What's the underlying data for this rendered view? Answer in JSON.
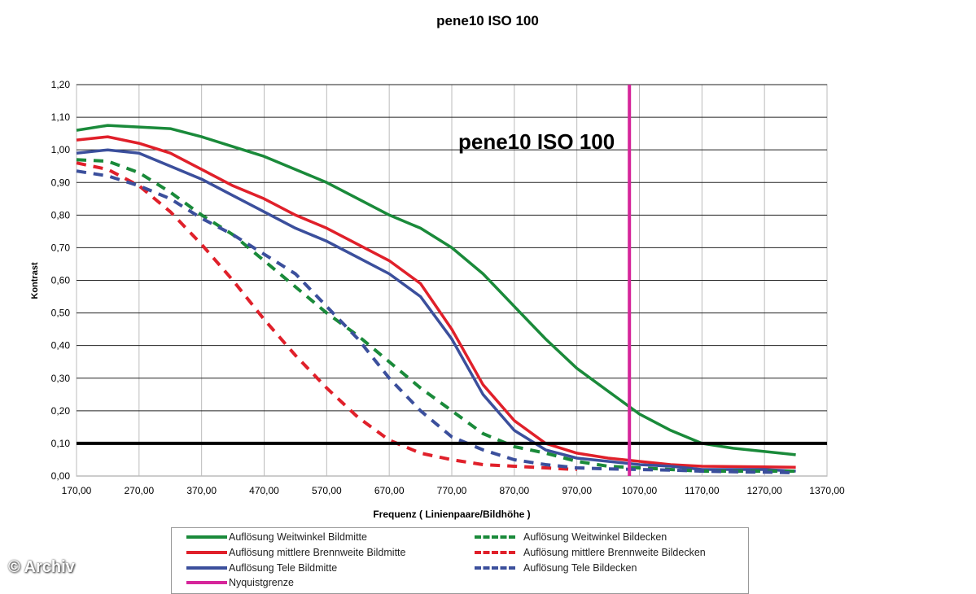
{
  "chart_data": {
    "type": "line",
    "title": "pene10   ISO 100",
    "inner_title": "pene10   ISO 100",
    "xlabel": "Frequenz ( Linienpaare/Bildhöhe )",
    "ylabel": "Kontrast",
    "xlim": [
      170,
      1370
    ],
    "ylim": [
      0,
      1.2
    ],
    "xticks": [
      "170,00",
      "270,00",
      "370,00",
      "470,00",
      "570,00",
      "670,00",
      "770,00",
      "870,00",
      "970,00",
      "1070,00",
      "1170,00",
      "1270,00",
      "1370,00"
    ],
    "yticks": [
      "0,00",
      "0,10",
      "0,20",
      "0,30",
      "0,40",
      "0,50",
      "0,60",
      "0,70",
      "0,80",
      "0,90",
      "1,00",
      "1,10",
      "1,20"
    ],
    "grid": true,
    "legend_position": "bottom",
    "x": [
      170,
      220,
      270,
      320,
      370,
      420,
      470,
      520,
      570,
      620,
      670,
      720,
      770,
      820,
      870,
      920,
      970,
      1020,
      1070,
      1120,
      1170,
      1220,
      1270,
      1320
    ],
    "series": [
      {
        "name": "Auflösung Weitwinkel Bildmitte",
        "color": "#1a8a3a",
        "dashed": false,
        "values": [
          1.06,
          1.075,
          1.07,
          1.065,
          1.04,
          1.01,
          0.98,
          0.94,
          0.9,
          0.85,
          0.8,
          0.76,
          0.7,
          0.62,
          0.52,
          0.42,
          0.33,
          0.26,
          0.19,
          0.14,
          0.1,
          0.085,
          0.075,
          0.065
        ]
      },
      {
        "name": "Auflösung mittlere Brennweite Bildmitte",
        "color": "#e0202a",
        "dashed": false,
        "values": [
          1.03,
          1.04,
          1.02,
          0.99,
          0.94,
          0.89,
          0.85,
          0.8,
          0.76,
          0.71,
          0.66,
          0.59,
          0.45,
          0.28,
          0.17,
          0.1,
          0.07,
          0.055,
          0.045,
          0.035,
          0.03,
          0.029,
          0.028,
          0.027
        ]
      },
      {
        "name": "Auflösung Tele Bildmitte",
        "color": "#3b4f9c",
        "dashed": false,
        "values": [
          0.99,
          1.0,
          0.99,
          0.95,
          0.91,
          0.86,
          0.81,
          0.76,
          0.72,
          0.67,
          0.62,
          0.55,
          0.42,
          0.25,
          0.14,
          0.08,
          0.055,
          0.045,
          0.035,
          0.03,
          0.02,
          0.02,
          0.02,
          0.015
        ]
      },
      {
        "name": "Auflösung Weitwinkel Bildecken",
        "color": "#1a8a3a",
        "dashed": true,
        "values": [
          0.97,
          0.965,
          0.93,
          0.87,
          0.8,
          0.74,
          0.66,
          0.58,
          0.5,
          0.43,
          0.35,
          0.27,
          0.2,
          0.13,
          0.09,
          0.07,
          0.045,
          0.03,
          0.025,
          0.02,
          0.015,
          0.015,
          0.015,
          0.015
        ]
      },
      {
        "name": "Auflösung mittlere Brennweite Bildecken",
        "color": "#e0202a",
        "dashed": true,
        "values": [
          0.96,
          0.94,
          0.89,
          0.81,
          0.71,
          0.6,
          0.48,
          0.37,
          0.27,
          0.18,
          0.11,
          0.07,
          0.05,
          0.035,
          0.03,
          0.025,
          0.02,
          null,
          null,
          null,
          null,
          null,
          null,
          null
        ]
      },
      {
        "name": "Auflösung Tele Bildecken",
        "color": "#3b4f9c",
        "dashed": true,
        "values": [
          0.935,
          0.92,
          0.89,
          0.85,
          0.79,
          0.74,
          0.68,
          0.62,
          0.52,
          0.42,
          0.3,
          0.2,
          0.12,
          0.08,
          0.05,
          0.035,
          0.025,
          0.022,
          0.02,
          0.018,
          0.015,
          0.013,
          0.012,
          0.01
        ]
      }
    ],
    "nyquist": {
      "name": "Nyquistgrenze",
      "color": "#d6259a",
      "x": 1054
    },
    "threshold": {
      "y": 0.1,
      "color": "#000000"
    }
  },
  "watermark": "© Archiv"
}
